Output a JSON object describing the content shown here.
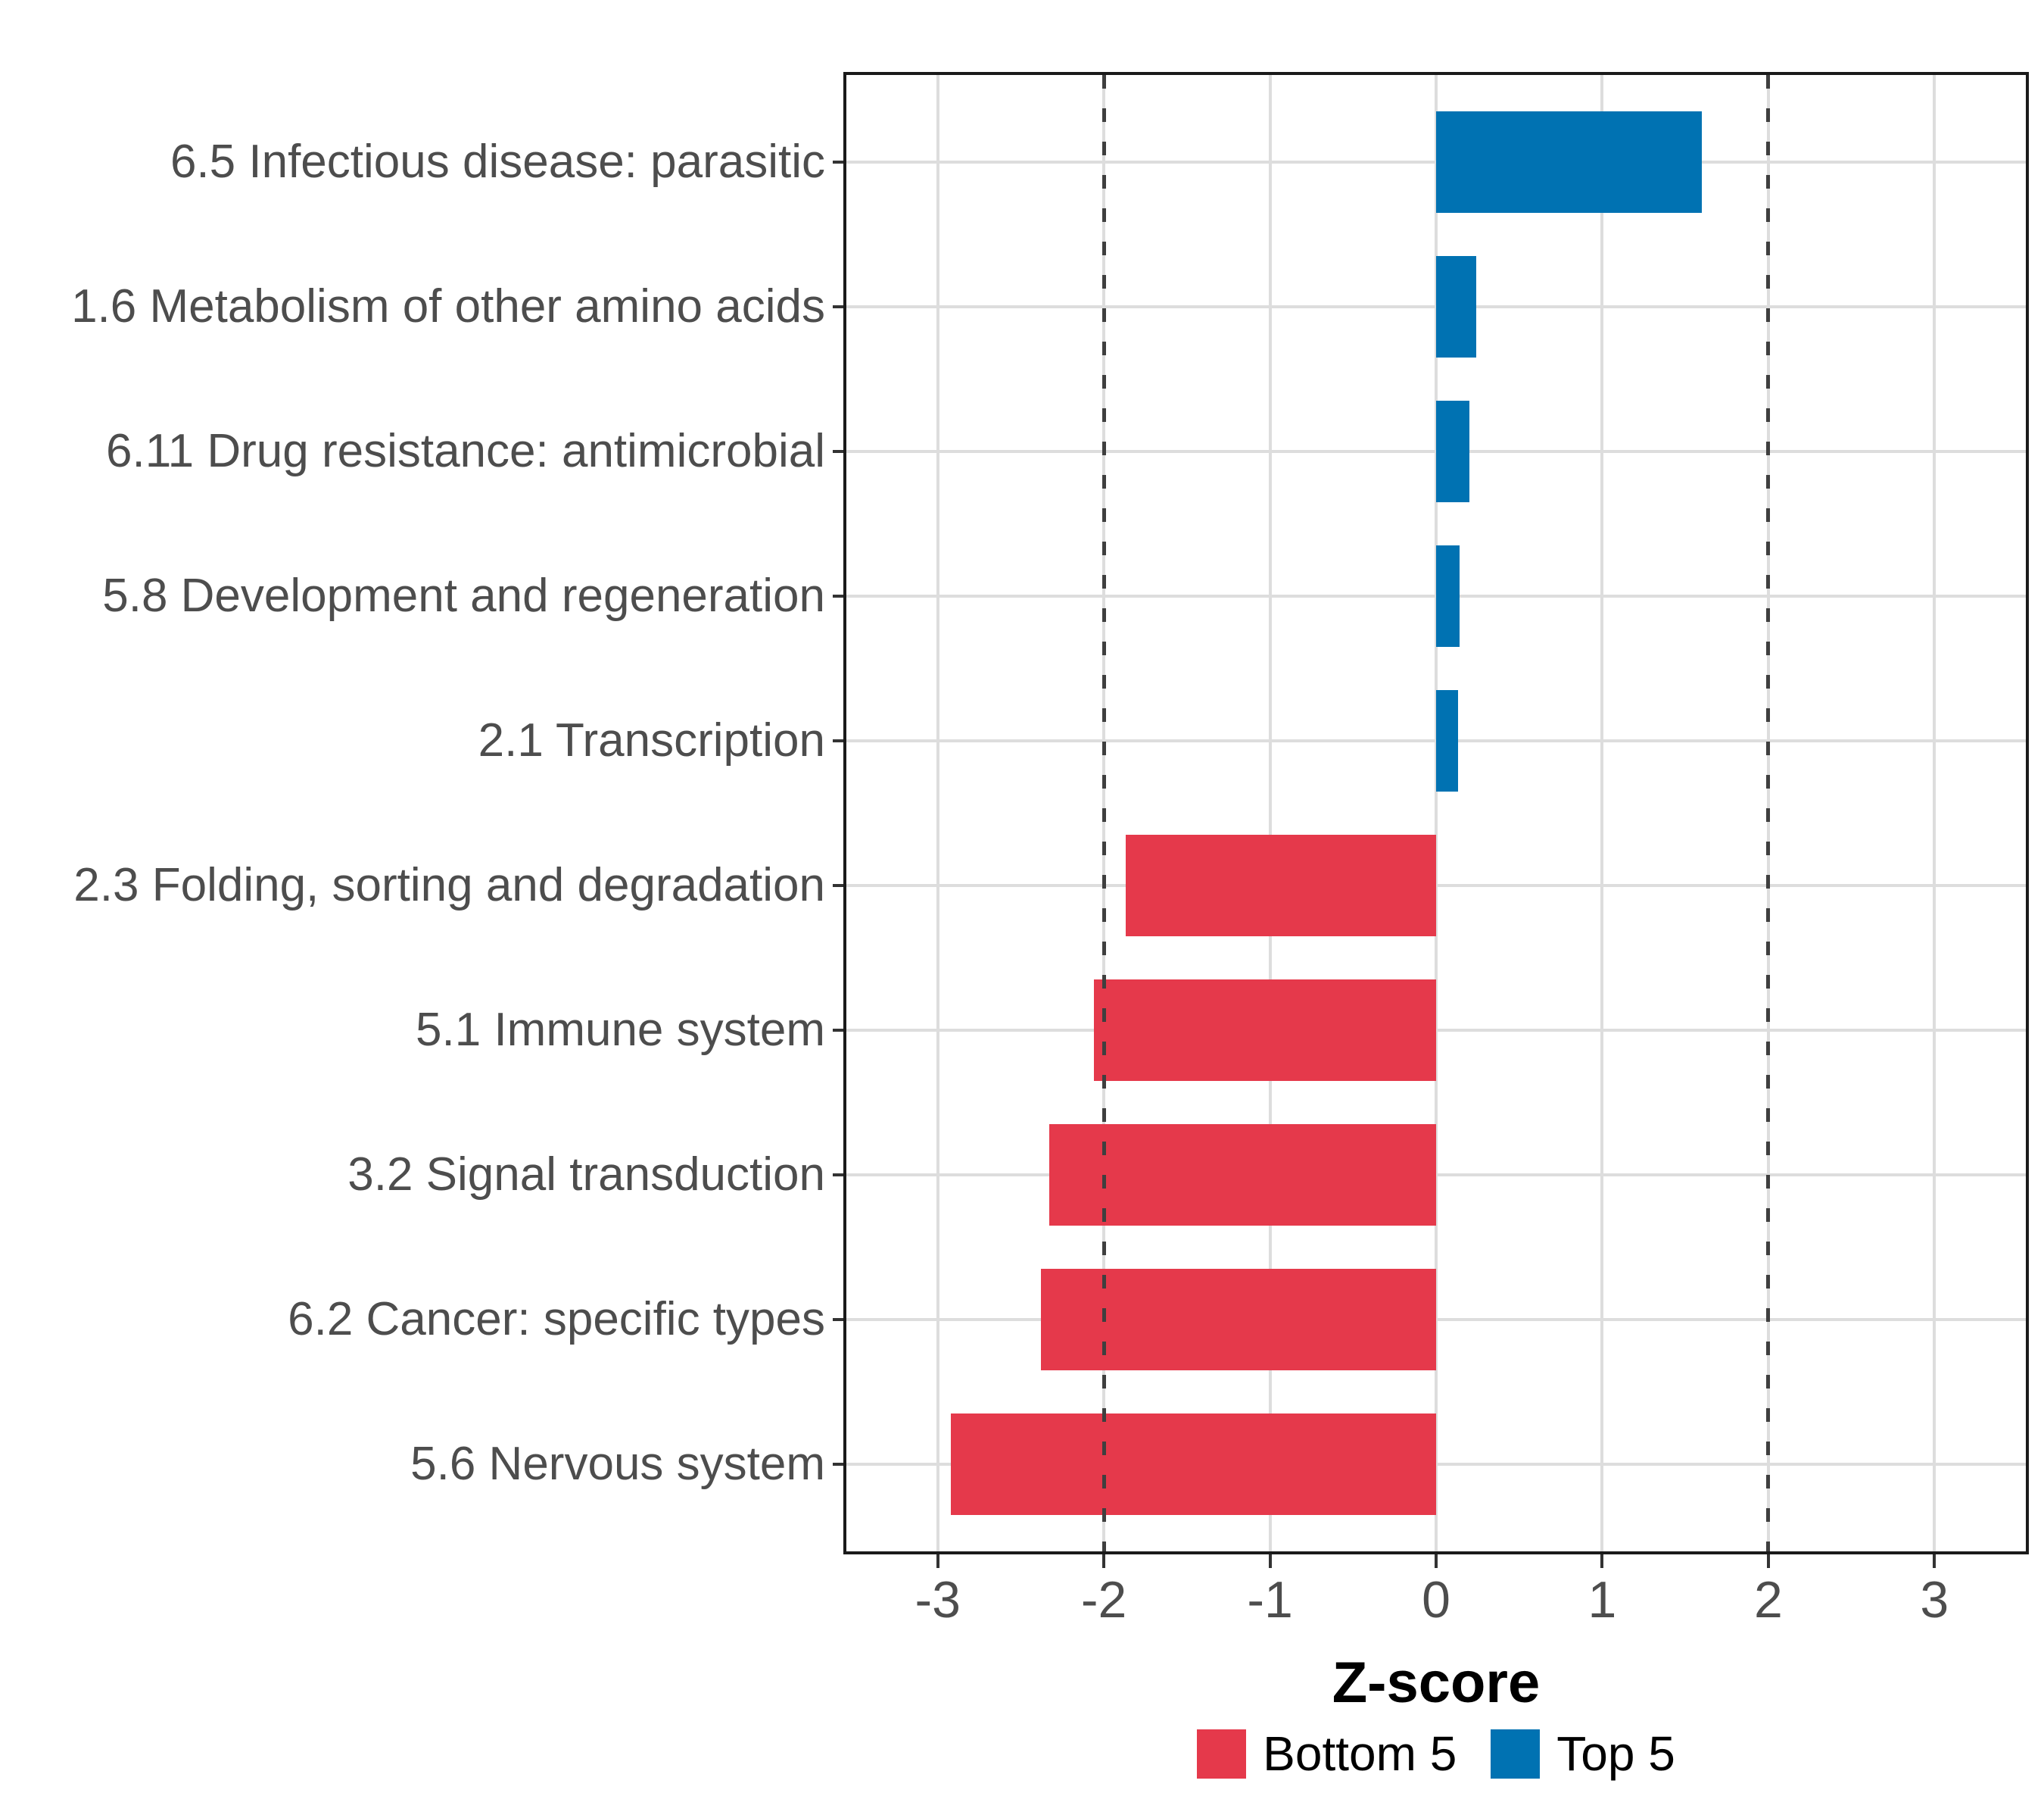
{
  "chart_data": {
    "type": "bar",
    "orientation": "horizontal",
    "title": "",
    "xlabel": "Z-score",
    "ylabel": "",
    "categories": [
      "6.5 Infectious disease: parasitic",
      "1.6 Metabolism of other amino acids",
      "6.11 Drug resistance: antimicrobial",
      "5.8 Development and regeneration",
      "2.1 Transcription",
      "2.3 Folding, sorting and degradation",
      "5.1 Immune system",
      "3.2 Signal transduction",
      "6.2 Cancer: specific types",
      "5.6 Nervous system"
    ],
    "values": [
      1.6,
      0.24,
      0.2,
      0.14,
      0.13,
      -1.87,
      -2.06,
      -2.33,
      -2.38,
      -2.92
    ],
    "groups": [
      "Top 5",
      "Top 5",
      "Top 5",
      "Top 5",
      "Top 5",
      "Bottom 5",
      "Bottom 5",
      "Bottom 5",
      "Bottom 5",
      "Bottom 5"
    ],
    "x_ticks": [
      "-3",
      "-2",
      "-1",
      "0",
      "1",
      "2",
      "3"
    ],
    "x_tick_values": [
      -3,
      -2,
      -1,
      0,
      1,
      2,
      3
    ],
    "xlim": [
      -3.55,
      3.55
    ],
    "reference_lines": [
      -2,
      2
    ],
    "reference_line_style": "dashed",
    "grid": true,
    "legend_position": "bottom",
    "legend": [
      {
        "label": "Bottom 5",
        "color": "#E5394B"
      },
      {
        "label": "Top 5",
        "color": "#0072B2"
      }
    ],
    "colors": {
      "Bottom 5": "#E5394B",
      "Top 5": "#0072B2",
      "gridline": "#DDDDDD",
      "reference_line": "#3F3F3F",
      "panel_border": "#1A1A1A",
      "axis_text": "#4D4D4D"
    }
  }
}
